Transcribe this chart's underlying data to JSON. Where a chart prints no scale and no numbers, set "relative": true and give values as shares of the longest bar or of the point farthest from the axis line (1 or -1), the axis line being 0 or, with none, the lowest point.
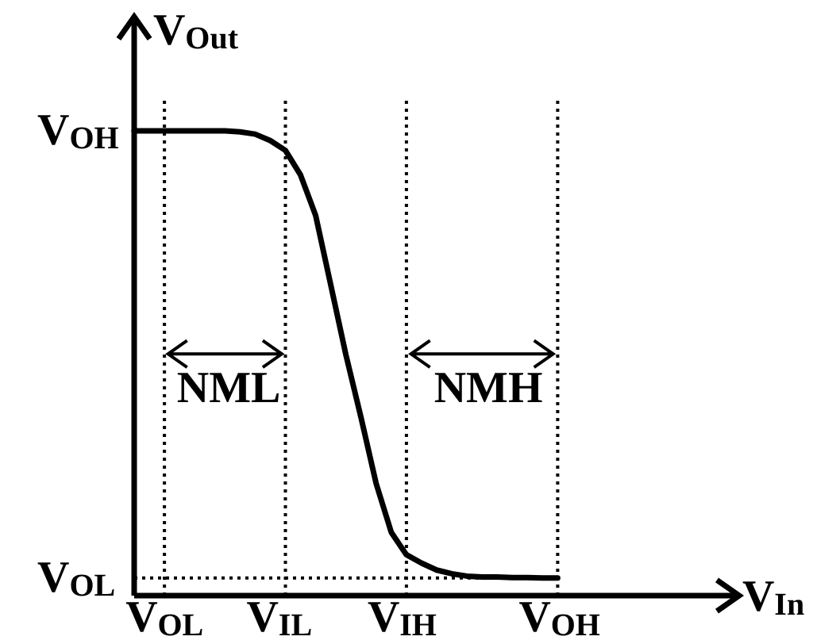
{
  "chart_data": {
    "type": "line",
    "relative": true,
    "xlabel": "V$_{In}$",
    "ylabel": "V$_{Out}$",
    "categories": [
      null,
      null,
      "V$_{OL}$",
      null,
      null,
      null,
      null,
      null,
      null,
      null,
      "V$_{IL}$",
      null,
      null,
      null,
      null,
      null,
      null,
      null,
      "V$_{IH}$",
      null,
      null,
      null,
      null,
      null,
      null,
      null,
      null,
      null,
      "V$_{OH}$",
      null,
      null,
      null,
      null,
      null,
      null,
      null,
      null,
      null,
      null,
      null,
      null
    ],
    "series": [
      {
        "color": "#000000",
        "values": [
          1,
          1,
          1,
          1,
          1,
          1,
          1,
          0.998,
          0.993,
          0.979,
          0.958,
          0.905,
          0.818,
          0.668,
          0.518,
          0.383,
          0.241,
          0.136,
          0.088,
          0.07,
          0.055,
          0.047,
          0.042,
          0.04,
          0.04,
          0.039,
          0.039,
          0.038,
          0.038,
          null,
          null,
          null,
          null,
          null,
          null,
          null,
          null,
          null,
          null,
          null,
          null
        ]
      }
    ],
    "grid": "x",
    "ref_lines": [
      {
        "axis": "y",
        "value": 0.038,
        "label": "V$_{OL}$",
        "line_style": "dotted"
      }
    ],
    "annotations": [
      "V$_{OH}$",
      "NML",
      "NMH"
    ],
    "line_style": "solid"
  }
}
